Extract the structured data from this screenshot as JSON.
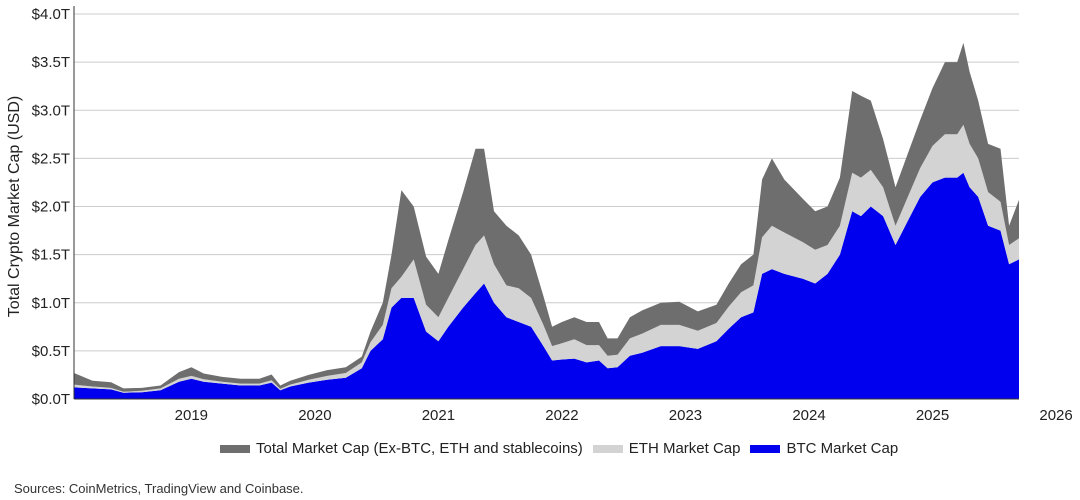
{
  "chart_data": {
    "type": "area",
    "stacked": true,
    "title": "",
    "ylabel": "Total Crypto Market Cap (USD)",
    "xlabel": "",
    "x_ticks": [
      "2019",
      "2020",
      "2021",
      "2022",
      "2023",
      "2024",
      "2025",
      "2026"
    ],
    "y_ticks": [
      "$0.0T",
      "$0.5T",
      "$1.0T",
      "$1.5T",
      "$2.0T",
      "$2.5T",
      "$3.0T",
      "$3.5T",
      "$4.0T"
    ],
    "xlim": [
      2018.55,
      2026.2
    ],
    "ylim": [
      0,
      4.0
    ],
    "grid": "horizontal",
    "legend_position": "bottom",
    "x": [
      2018.55,
      2018.7,
      2018.85,
      2018.95,
      2019.1,
      2019.25,
      2019.4,
      2019.5,
      2019.6,
      2019.75,
      2019.9,
      2020.05,
      2020.15,
      2020.22,
      2020.3,
      2020.45,
      2020.6,
      2020.75,
      2020.88,
      2020.95,
      2021.05,
      2021.12,
      2021.2,
      2021.3,
      2021.4,
      2021.5,
      2021.58,
      2021.7,
      2021.8,
      2021.87,
      2021.95,
      2022.05,
      2022.15,
      2022.25,
      2022.35,
      2022.42,
      2022.5,
      2022.6,
      2022.7,
      2022.8,
      2022.87,
      2022.95,
      2023.05,
      2023.15,
      2023.3,
      2023.45,
      2023.6,
      2023.75,
      2023.85,
      2023.95,
      2024.05,
      2024.12,
      2024.2,
      2024.3,
      2024.45,
      2024.55,
      2024.65,
      2024.75,
      2024.85,
      2024.92,
      2025.0,
      2025.1,
      2025.2,
      2025.3,
      2025.4,
      2025.5,
      2025.6,
      2025.7,
      2025.75,
      2025.8,
      2025.87,
      2025.95,
      2026.05,
      2026.12,
      2026.2
    ],
    "series": [
      {
        "name": "BTC Market Cap",
        "color": "#0000ee",
        "values": [
          0.12,
          0.11,
          0.1,
          0.065,
          0.07,
          0.09,
          0.18,
          0.21,
          0.18,
          0.16,
          0.14,
          0.14,
          0.17,
          0.09,
          0.13,
          0.17,
          0.2,
          0.22,
          0.32,
          0.5,
          0.62,
          0.95,
          1.05,
          1.05,
          0.7,
          0.6,
          0.75,
          0.95,
          1.1,
          1.2,
          1.0,
          0.85,
          0.8,
          0.75,
          0.55,
          0.4,
          0.41,
          0.42,
          0.38,
          0.4,
          0.32,
          0.33,
          0.45,
          0.48,
          0.55,
          0.55,
          0.52,
          0.6,
          0.73,
          0.85,
          0.9,
          1.3,
          1.35,
          1.3,
          1.25,
          1.2,
          1.3,
          1.5,
          1.95,
          1.9,
          2.0,
          1.9,
          1.6,
          1.85,
          2.1,
          2.25,
          2.3,
          2.3,
          2.35,
          2.2,
          2.1,
          1.8,
          1.75,
          1.4,
          1.45
        ]
      },
      {
        "name": "ETH Market Cap",
        "color": "#d3d3d3",
        "values": [
          0.03,
          0.02,
          0.015,
          0.01,
          0.015,
          0.02,
          0.03,
          0.03,
          0.025,
          0.02,
          0.02,
          0.02,
          0.025,
          0.015,
          0.02,
          0.03,
          0.04,
          0.05,
          0.06,
          0.09,
          0.15,
          0.2,
          0.22,
          0.4,
          0.28,
          0.25,
          0.3,
          0.4,
          0.5,
          0.5,
          0.4,
          0.33,
          0.35,
          0.3,
          0.22,
          0.15,
          0.17,
          0.2,
          0.18,
          0.16,
          0.13,
          0.13,
          0.18,
          0.2,
          0.22,
          0.22,
          0.19,
          0.19,
          0.23,
          0.26,
          0.28,
          0.38,
          0.45,
          0.43,
          0.38,
          0.35,
          0.3,
          0.3,
          0.4,
          0.4,
          0.38,
          0.3,
          0.2,
          0.25,
          0.3,
          0.38,
          0.45,
          0.45,
          0.5,
          0.45,
          0.4,
          0.35,
          0.3,
          0.2,
          0.22
        ]
      },
      {
        "name": "Total Market Cap (Ex-BTC, ETH and stablecoins)",
        "color": "#6e6e6e",
        "values": [
          0.12,
          0.06,
          0.06,
          0.035,
          0.03,
          0.03,
          0.07,
          0.09,
          0.06,
          0.05,
          0.05,
          0.05,
          0.06,
          0.035,
          0.04,
          0.05,
          0.06,
          0.06,
          0.06,
          0.11,
          0.23,
          0.35,
          0.9,
          0.55,
          0.5,
          0.45,
          0.6,
          0.8,
          1.0,
          0.9,
          0.55,
          0.62,
          0.55,
          0.45,
          0.3,
          0.2,
          0.22,
          0.23,
          0.24,
          0.24,
          0.18,
          0.17,
          0.22,
          0.24,
          0.23,
          0.24,
          0.2,
          0.19,
          0.24,
          0.29,
          0.32,
          0.6,
          0.7,
          0.55,
          0.45,
          0.4,
          0.4,
          0.5,
          0.85,
          0.85,
          0.72,
          0.5,
          0.4,
          0.45,
          0.5,
          0.6,
          0.75,
          0.75,
          0.85,
          0.75,
          0.6,
          0.5,
          0.55,
          0.2,
          0.4
        ]
      }
    ]
  },
  "legend": {
    "items": [
      {
        "label": "Total Market Cap (Ex-BTC, ETH and stablecoins)",
        "color": "#6e6e6e"
      },
      {
        "label": "ETH Market Cap",
        "color": "#d3d3d3"
      },
      {
        "label": "BTC Market Cap",
        "color": "#0000ee"
      }
    ]
  },
  "source": "Sources: CoinMetrics, TradingView and Coinbase."
}
